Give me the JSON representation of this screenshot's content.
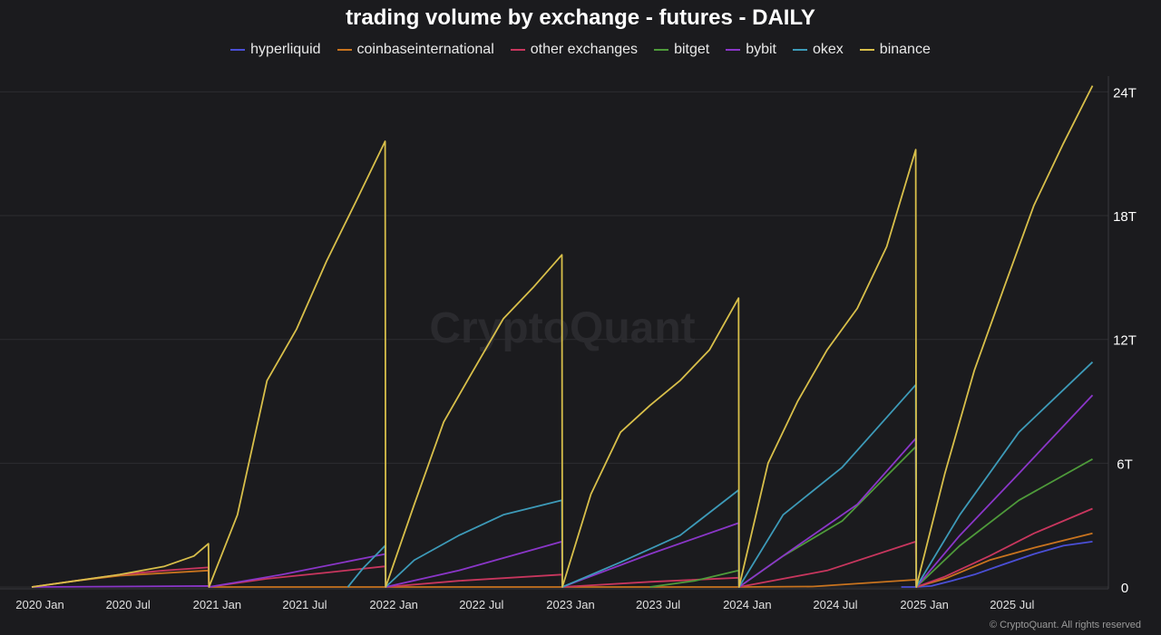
{
  "title": "trading volume by exchange - futures - DAILY",
  "watermark": "CryptoQuant",
  "footer": "© CryptoQuant. All rights reserved",
  "chart_data": {
    "type": "line",
    "title": "trading volume by exchange - futures - DAILY",
    "xlabel": "",
    "ylabel": "",
    "y_axis_position": "right",
    "legend_position": "top-center",
    "grid": true,
    "x_ticks": [
      "2020 Jan",
      "2020 Jul",
      "2021 Jan",
      "2021 Jul",
      "2022 Jan",
      "2022 Jul",
      "2023 Jan",
      "2023 Jul",
      "2024 Jan",
      "2024 Jul",
      "2025 Jan",
      "2025 Jul"
    ],
    "y_ticks": [
      "0",
      "6T",
      "12T",
      "18T",
      "24T"
    ],
    "ylim": [
      0,
      24.5
    ],
    "y_unit": "T",
    "series": [
      {
        "name": "hyperliquid",
        "color": "#4a4fd6",
        "points": [
          [
            "2024-12-01",
            0
          ],
          [
            "2025-01-01",
            0
          ],
          [
            "2025-02-01",
            0.05
          ],
          [
            "2025-03-15",
            0.3
          ],
          [
            "2025-05-01",
            0.6
          ],
          [
            "2025-07-01",
            1.1
          ],
          [
            "2025-09-01",
            1.6
          ],
          [
            "2025-11-01",
            2.0
          ],
          [
            "2025-12-31",
            2.2
          ]
        ]
      },
      {
        "name": "coinbaseinternational",
        "color": "#c8731e",
        "points": [
          [
            "2020-01-01",
            0
          ],
          [
            "2020-04-01",
            0.3
          ],
          [
            "2020-07-01",
            0.55
          ],
          [
            "2020-12-31",
            0.8
          ],
          [
            "2021-01-01",
            0
          ],
          [
            "2021-12-31",
            0
          ],
          [
            "2022-01-01",
            0
          ],
          [
            "2022-12-31",
            0
          ],
          [
            "2023-01-01",
            0
          ],
          [
            "2023-12-31",
            0
          ],
          [
            "2024-01-01",
            0
          ],
          [
            "2024-06-01",
            0.02
          ],
          [
            "2024-12-31",
            0.35
          ],
          [
            "2025-01-01",
            0
          ],
          [
            "2025-03-01",
            0.4
          ],
          [
            "2025-06-01",
            1.3
          ],
          [
            "2025-09-01",
            1.9
          ],
          [
            "2025-12-31",
            2.6
          ]
        ]
      },
      {
        "name": "other exchanges",
        "color": "#c8365e",
        "points": [
          [
            "2020-01-01",
            0
          ],
          [
            "2020-04-01",
            0.3
          ],
          [
            "2020-07-01",
            0.6
          ],
          [
            "2020-10-01",
            0.8
          ],
          [
            "2020-12-31",
            0.95
          ],
          [
            "2021-01-01",
            0
          ],
          [
            "2021-05-01",
            0.4
          ],
          [
            "2021-09-01",
            0.7
          ],
          [
            "2021-12-31",
            1.0
          ],
          [
            "2022-01-01",
            0
          ],
          [
            "2022-06-01",
            0.3
          ],
          [
            "2022-12-31",
            0.6
          ],
          [
            "2023-01-01",
            0
          ],
          [
            "2023-07-01",
            0.25
          ],
          [
            "2023-12-31",
            0.45
          ],
          [
            "2024-01-01",
            0
          ],
          [
            "2024-07-01",
            0.8
          ],
          [
            "2024-12-31",
            2.2
          ],
          [
            "2025-01-01",
            0
          ],
          [
            "2025-03-01",
            0.5
          ],
          [
            "2025-06-01",
            1.5
          ],
          [
            "2025-09-01",
            2.6
          ],
          [
            "2025-12-31",
            3.8
          ]
        ]
      },
      {
        "name": "bitget",
        "color": "#4e9a3a",
        "points": [
          [
            "2023-07-01",
            0
          ],
          [
            "2023-10-01",
            0.3
          ],
          [
            "2023-12-31",
            0.8
          ],
          [
            "2024-01-01",
            0
          ],
          [
            "2024-04-01",
            1.5
          ],
          [
            "2024-08-01",
            3.2
          ],
          [
            "2024-12-31",
            6.8
          ],
          [
            "2025-01-01",
            0
          ],
          [
            "2025-04-01",
            2.0
          ],
          [
            "2025-08-01",
            4.2
          ],
          [
            "2025-12-31",
            6.2
          ]
        ]
      },
      {
        "name": "bybit",
        "color": "#8a36c8",
        "points": [
          [
            "2020-01-01",
            0
          ],
          [
            "2020-12-31",
            0.05
          ],
          [
            "2021-01-01",
            0
          ],
          [
            "2021-06-01",
            0.6
          ],
          [
            "2021-12-31",
            1.6
          ],
          [
            "2022-01-01",
            0
          ],
          [
            "2022-06-01",
            0.8
          ],
          [
            "2022-12-31",
            2.2
          ],
          [
            "2023-01-01",
            0
          ],
          [
            "2023-07-01",
            1.6
          ],
          [
            "2023-12-31",
            3.1
          ],
          [
            "2024-01-01",
            0
          ],
          [
            "2024-05-01",
            2.0
          ],
          [
            "2024-09-01",
            4.0
          ],
          [
            "2024-12-31",
            7.2
          ],
          [
            "2025-01-01",
            0
          ],
          [
            "2025-04-01",
            2.5
          ],
          [
            "2025-08-01",
            5.5
          ],
          [
            "2025-12-31",
            9.3
          ]
        ]
      },
      {
        "name": "okex",
        "color": "#3d9ab8",
        "points": [
          [
            "2021-10-15",
            0
          ],
          [
            "2021-11-15",
            0.9
          ],
          [
            "2021-12-31",
            2.0
          ],
          [
            "2022-01-01",
            0
          ],
          [
            "2022-03-01",
            1.3
          ],
          [
            "2022-06-01",
            2.5
          ],
          [
            "2022-09-01",
            3.5
          ],
          [
            "2022-12-31",
            4.2
          ],
          [
            "2023-01-01",
            0
          ],
          [
            "2023-05-01",
            1.2
          ],
          [
            "2023-09-01",
            2.5
          ],
          [
            "2023-12-31",
            4.7
          ],
          [
            "2024-01-01",
            0
          ],
          [
            "2024-04-01",
            3.5
          ],
          [
            "2024-08-01",
            5.8
          ],
          [
            "2024-12-31",
            9.8
          ],
          [
            "2025-01-01",
            0
          ],
          [
            "2025-04-01",
            3.5
          ],
          [
            "2025-08-01",
            7.5
          ],
          [
            "2025-12-31",
            10.9
          ]
        ]
      },
      {
        "name": "binance",
        "color": "#d8bf4a",
        "points": [
          [
            "2020-01-01",
            0
          ],
          [
            "2020-04-01",
            0.3
          ],
          [
            "2020-07-01",
            0.6
          ],
          [
            "2020-10-01",
            1.0
          ],
          [
            "2020-12-01",
            1.5
          ],
          [
            "2020-12-31",
            2.1
          ],
          [
            "2021-01-01",
            0
          ],
          [
            "2021-03-01",
            3.5
          ],
          [
            "2021-05-01",
            10.0
          ],
          [
            "2021-07-01",
            12.5
          ],
          [
            "2021-09-01",
            15.8
          ],
          [
            "2021-11-01",
            18.7
          ],
          [
            "2021-12-31",
            21.6
          ],
          [
            "2022-01-01",
            0
          ],
          [
            "2022-03-01",
            4.0
          ],
          [
            "2022-05-01",
            8.0
          ],
          [
            "2022-07-01",
            10.5
          ],
          [
            "2022-09-01",
            13.0
          ],
          [
            "2022-11-01",
            14.5
          ],
          [
            "2022-12-31",
            16.1
          ],
          [
            "2023-01-01",
            0
          ],
          [
            "2023-03-01",
            4.5
          ],
          [
            "2023-05-01",
            7.5
          ],
          [
            "2023-07-01",
            8.8
          ],
          [
            "2023-09-01",
            10.0
          ],
          [
            "2023-11-01",
            11.5
          ],
          [
            "2023-12-31",
            14.0
          ],
          [
            "2024-01-01",
            0
          ],
          [
            "2024-03-01",
            6.0
          ],
          [
            "2024-05-01",
            9.0
          ],
          [
            "2024-07-01",
            11.5
          ],
          [
            "2024-09-01",
            13.5
          ],
          [
            "2024-11-01",
            16.5
          ],
          [
            "2024-12-31",
            21.2
          ],
          [
            "2025-01-01",
            0
          ],
          [
            "2025-03-01",
            5.5
          ],
          [
            "2025-05-01",
            10.5
          ],
          [
            "2025-07-01",
            14.5
          ],
          [
            "2025-09-01",
            18.5
          ],
          [
            "2025-11-01",
            21.5
          ],
          [
            "2025-12-31",
            24.3
          ]
        ]
      }
    ]
  }
}
